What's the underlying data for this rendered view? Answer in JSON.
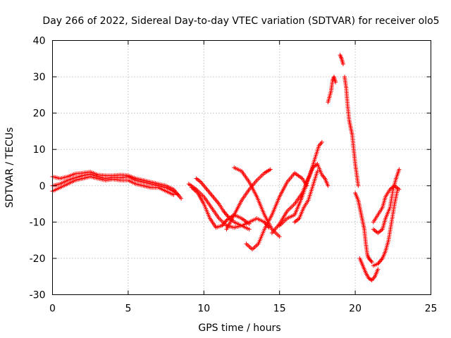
{
  "chart_data": {
    "type": "scatter",
    "title": "Day 266 of 2022, Sidereal Day-to-day VTEC variation (SDTVAR) for receiver olo5",
    "xlabel": "GPS time / hours",
    "ylabel": "SDTVAR / TECUs",
    "xlim": [
      0,
      25
    ],
    "ylim": [
      -30,
      40
    ],
    "xticks": [
      "0",
      "5",
      "10",
      "15",
      "20",
      "25"
    ],
    "yticks": [
      "40",
      "30",
      "20",
      "10",
      "0",
      "-10",
      "-20",
      "-30"
    ],
    "grid": true,
    "marker": "+",
    "color": "#ff0000",
    "series": [
      {
        "name": "s1",
        "values": [
          [
            0,
            0
          ],
          [
            0.5,
            0.5
          ],
          [
            1,
            1.5
          ],
          [
            1.5,
            2.2
          ],
          [
            2,
            2.8
          ],
          [
            2.5,
            3.2
          ],
          [
            3,
            2.5
          ],
          [
            3.5,
            2
          ],
          [
            4,
            2.3
          ],
          [
            4.5,
            2.2
          ],
          [
            5,
            2.5
          ],
          [
            5.5,
            1.5
          ],
          [
            6,
            1
          ],
          [
            6.5,
            0.5
          ],
          [
            7,
            0
          ],
          [
            7.5,
            -0.5
          ],
          [
            8,
            -1.5
          ],
          [
            8.3,
            -2.5
          ]
        ]
      },
      {
        "name": "s2",
        "values": [
          [
            0,
            -1.5
          ],
          [
            0.5,
            -0.5
          ],
          [
            1,
            0.5
          ],
          [
            1.5,
            1.5
          ],
          [
            2,
            2
          ],
          [
            2.5,
            2.5
          ],
          [
            3,
            2
          ],
          [
            3.5,
            1.5
          ],
          [
            4,
            1.8
          ],
          [
            4.5,
            1.5
          ],
          [
            5,
            1.5
          ],
          [
            5.5,
            0.5
          ],
          [
            6,
            0
          ],
          [
            6.5,
            -0.5
          ],
          [
            7,
            -0.5
          ],
          [
            7.5,
            -1.5
          ],
          [
            8,
            -2.5
          ]
        ]
      },
      {
        "name": "s3",
        "values": [
          [
            0,
            2.5
          ],
          [
            0.5,
            2
          ],
          [
            1,
            2.5
          ],
          [
            1.5,
            3.3
          ],
          [
            2,
            3.5
          ],
          [
            2.5,
            3.8
          ],
          [
            3,
            3
          ],
          [
            3.5,
            2.8
          ],
          [
            4,
            2.8
          ],
          [
            4.5,
            3
          ],
          [
            5,
            2.8
          ],
          [
            5.5,
            2
          ],
          [
            6,
            1.5
          ],
          [
            6.5,
            1
          ],
          [
            7,
            0.5
          ],
          [
            7.5,
            0
          ],
          [
            8,
            -1
          ],
          [
            8.5,
            -3.5
          ]
        ]
      },
      {
        "name": "s4",
        "values": [
          [
            9,
            0.5
          ],
          [
            9.5,
            -1
          ],
          [
            10,
            -3
          ],
          [
            10.5,
            -6
          ],
          [
            11,
            -9
          ],
          [
            11.5,
            -11
          ],
          [
            12,
            -11.5
          ],
          [
            12.5,
            -11
          ],
          [
            13,
            -10
          ],
          [
            13.5,
            -9
          ],
          [
            14,
            -10
          ],
          [
            14.3,
            -11.5
          ]
        ]
      },
      {
        "name": "s5",
        "values": [
          [
            9.2,
            -0.5
          ],
          [
            9.6,
            -2
          ],
          [
            10,
            -5
          ],
          [
            10.4,
            -9
          ],
          [
            10.8,
            -11.5
          ],
          [
            11.2,
            -11
          ],
          [
            11.5,
            -9.5
          ],
          [
            12,
            -8
          ],
          [
            12.5,
            -9
          ],
          [
            13,
            -10.5
          ]
        ]
      },
      {
        "name": "s6",
        "values": [
          [
            9.5,
            2
          ],
          [
            9.8,
            1
          ],
          [
            10.2,
            -1
          ],
          [
            10.6,
            -3
          ],
          [
            11,
            -5
          ],
          [
            11.3,
            -7
          ],
          [
            11.6,
            -8.5
          ],
          [
            12,
            -10
          ],
          [
            12.5,
            -11
          ],
          [
            13,
            -12
          ]
        ]
      },
      {
        "name": "s7",
        "values": [
          [
            11.5,
            -12
          ],
          [
            12,
            -8
          ],
          [
            12.5,
            -4
          ],
          [
            13,
            -1
          ],
          [
            13.5,
            1.5
          ],
          [
            14,
            3.5
          ],
          [
            14.4,
            4.5
          ]
        ]
      },
      {
        "name": "s8",
        "values": [
          [
            12,
            5
          ],
          [
            12.5,
            4
          ],
          [
            13,
            1
          ],
          [
            13.5,
            -3
          ],
          [
            14,
            -8
          ],
          [
            14.5,
            -12
          ],
          [
            15,
            -14
          ]
        ]
      },
      {
        "name": "s9",
        "values": [
          [
            12.8,
            -16
          ],
          [
            13.2,
            -17.5
          ],
          [
            13.6,
            -16
          ],
          [
            14,
            -12
          ],
          [
            14.5,
            -8
          ],
          [
            15,
            -3
          ],
          [
            15.5,
            1
          ],
          [
            16,
            3.5
          ],
          [
            16.5,
            2
          ],
          [
            16.8,
            0
          ]
        ]
      },
      {
        "name": "s10",
        "values": [
          [
            14.5,
            -13
          ],
          [
            15,
            -10.5
          ],
          [
            15.5,
            -7
          ],
          [
            16,
            -5
          ],
          [
            16.5,
            -2
          ],
          [
            17,
            3
          ],
          [
            17.3,
            7
          ],
          [
            17.6,
            11
          ],
          [
            17.8,
            12
          ]
        ]
      },
      {
        "name": "s11",
        "values": [
          [
            15,
            -11
          ],
          [
            15.5,
            -9
          ],
          [
            16,
            -8
          ],
          [
            16.5,
            -3
          ],
          [
            16.9,
            2
          ],
          [
            17.2,
            5
          ],
          [
            17.5,
            6
          ],
          [
            17.8,
            3
          ],
          [
            18,
            2
          ],
          [
            18.2,
            0
          ]
        ]
      },
      {
        "name": "s12",
        "values": [
          [
            16,
            -10
          ],
          [
            16.3,
            -9
          ],
          [
            16.6,
            -6
          ],
          [
            16.9,
            -4
          ],
          [
            17.2,
            0
          ],
          [
            17.5,
            4
          ]
        ]
      },
      {
        "name": "s13",
        "values": [
          [
            18.2,
            23
          ],
          [
            18.4,
            26
          ],
          [
            18.5,
            29
          ],
          [
            18.6,
            30
          ],
          [
            18.7,
            28.5
          ]
        ]
      },
      {
        "name": "s14",
        "values": [
          [
            19,
            36
          ],
          [
            19.1,
            35
          ],
          [
            19.2,
            33.5
          ]
        ]
      },
      {
        "name": "s15",
        "values": [
          [
            19.3,
            30
          ],
          [
            19.4,
            27
          ],
          [
            19.5,
            22
          ],
          [
            19.6,
            18
          ],
          [
            19.7,
            16
          ],
          [
            19.8,
            14
          ],
          [
            19.9,
            10
          ],
          [
            20,
            6
          ],
          [
            20.1,
            3
          ],
          [
            20.2,
            0
          ]
        ]
      },
      {
        "name": "s16",
        "values": [
          [
            20,
            -2
          ],
          [
            20.2,
            -4
          ],
          [
            20.3,
            -6
          ],
          [
            20.4,
            -8
          ],
          [
            20.5,
            -10
          ],
          [
            20.6,
            -12
          ],
          [
            20.7,
            -16
          ],
          [
            20.8,
            -19
          ],
          [
            20.9,
            -20
          ],
          [
            21,
            -20.5
          ],
          [
            21.1,
            -21
          ]
        ]
      },
      {
        "name": "s17",
        "values": [
          [
            20.3,
            -20
          ],
          [
            20.5,
            -22
          ],
          [
            20.7,
            -24
          ],
          [
            20.9,
            -25.5
          ],
          [
            21.1,
            -26
          ],
          [
            21.3,
            -25
          ],
          [
            21.5,
            -23
          ]
        ]
      },
      {
        "name": "s18",
        "values": [
          [
            21.2,
            -22
          ],
          [
            21.5,
            -21.5
          ],
          [
            21.8,
            -20
          ],
          [
            22,
            -18
          ],
          [
            22.2,
            -15
          ],
          [
            22.4,
            -10
          ],
          [
            22.6,
            -5
          ],
          [
            22.8,
            -1
          ]
        ]
      },
      {
        "name": "s19",
        "values": [
          [
            21.2,
            -12
          ],
          [
            21.5,
            -13
          ],
          [
            21.8,
            -12
          ],
          [
            22,
            -9
          ],
          [
            22.3,
            -6
          ],
          [
            22.5,
            -1
          ],
          [
            22.7,
            2
          ],
          [
            22.9,
            4.5
          ]
        ]
      },
      {
        "name": "s20",
        "values": [
          [
            21.2,
            -10
          ],
          [
            21.5,
            -8
          ],
          [
            21.8,
            -6
          ],
          [
            22,
            -3
          ],
          [
            22.3,
            -1
          ],
          [
            22.6,
            0
          ],
          [
            22.9,
            -1
          ]
        ]
      }
    ]
  }
}
